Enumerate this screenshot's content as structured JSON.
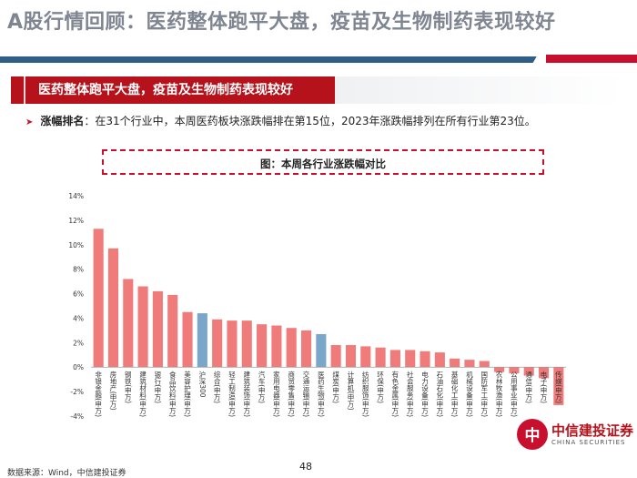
{
  "page": {
    "main_title": "A股行情回顾：医药整体跑平大盘，疫苗及生物制药表现较好",
    "section_heading": "医药整体跑平大盘，疫苗及生物制药表现较好",
    "bullet_key": "涨幅排名",
    "bullet_text": "：在31个行业中，本周医药板块涨跌幅排在第15位，2023年涨跌幅排列在所有行业第23位。",
    "figure_title": "图：本周各行业涨跌幅对比",
    "source": "数据来源：Wind，中信建投证券",
    "page_number": "48",
    "logo_mark": "中",
    "logo_cn": "中信建投证券",
    "logo_en": "CHINA SECURITIES"
  },
  "colors": {
    "bar_default": "#f07b7b",
    "bar_highlight": "#7aa6c9",
    "brand_red": "#c8102e",
    "brand_blue": "#2f5f86"
  },
  "chart_data": {
    "type": "bar",
    "title": "",
    "xlabel": "",
    "ylabel": "",
    "ylim": [
      -0.04,
      0.14
    ],
    "yticks": [
      "-4%",
      "-2%",
      "0%",
      "2%",
      "4%",
      "6%",
      "8%",
      "10%",
      "12%",
      "14%"
    ],
    "grid": false,
    "legend": "none",
    "categories": [
      "非银金融(申万)",
      "房地产(申万)",
      "钢铁(申万)",
      "建筑材料(申万)",
      "银行(申万)",
      "食品饮料(申万)",
      "美容护理(申万)",
      "沪深300",
      "综合(申万)",
      "轻工制造(申万)",
      "建筑装饰(申万)",
      "汽车(申万)",
      "家用电器(申万)",
      "商贸零售(申万)",
      "交通运输(申万)",
      "医药生物(申万)",
      "煤炭(申万)",
      "计算机(申万)",
      "纺织服饰(申万)",
      "环保(申万)",
      "有色金属(申万)",
      "社会服务(申万)",
      "电力设备(申万)",
      "石油石化(申万)",
      "基础化工(申万)",
      "机械设备(申万)",
      "国防军工(申万)",
      "农林牧渔(申万)",
      "公用事业(申万)",
      "通信(申万)",
      "电子(申万)",
      "传媒(申万)"
    ],
    "values": [
      0.113,
      0.097,
      0.072,
      0.066,
      0.062,
      0.059,
      0.045,
      0.044,
      0.039,
      0.038,
      0.038,
      0.035,
      0.034,
      0.032,
      0.03,
      0.027,
      0.018,
      0.018,
      0.017,
      0.016,
      0.014,
      0.014,
      0.013,
      0.012,
      0.007,
      0.006,
      0.005,
      -0.004,
      -0.005,
      -0.007,
      -0.009,
      -0.031
    ],
    "highlight": [
      "沪深300",
      "医药生物(申万)"
    ]
  }
}
